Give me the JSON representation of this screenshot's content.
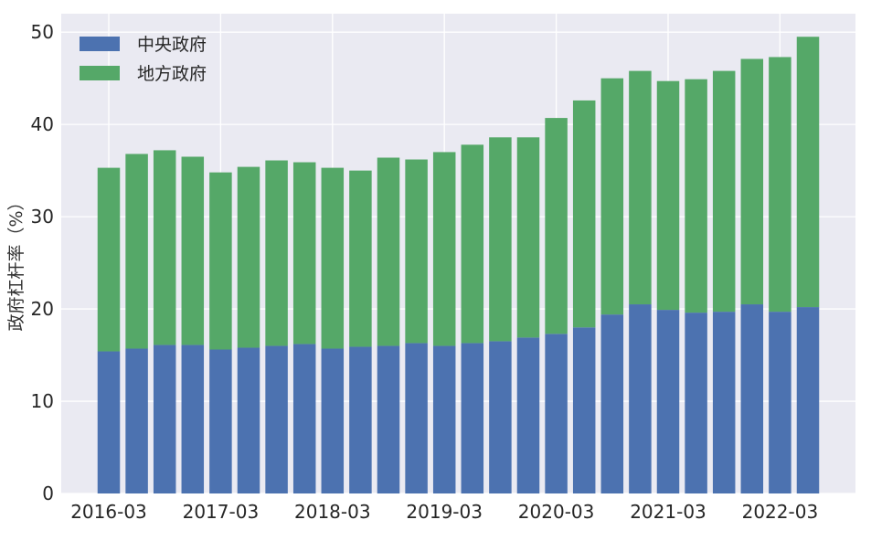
{
  "chart_data": {
    "type": "bar",
    "stacked": true,
    "title": "",
    "xlabel": "",
    "ylabel": "政府杠杆率（%）",
    "ylim": [
      0,
      52
    ],
    "yticks": [
      0,
      10,
      20,
      30,
      40,
      50
    ],
    "grid": true,
    "legend_position": "top-left",
    "x_tick_labels": [
      "2016-03",
      "2017-03",
      "2018-03",
      "2019-03",
      "2020-03",
      "2021-03",
      "2022-03"
    ],
    "x_tick_category_indices": [
      0,
      4,
      8,
      12,
      16,
      20,
      24
    ],
    "categories": [
      "2016-03",
      "2016-06",
      "2016-09",
      "2016-12",
      "2017-03",
      "2017-06",
      "2017-09",
      "2017-12",
      "2018-03",
      "2018-06",
      "2018-09",
      "2018-12",
      "2019-03",
      "2019-06",
      "2019-09",
      "2019-12",
      "2020-03",
      "2020-06",
      "2020-09",
      "2020-12",
      "2021-03",
      "2021-06",
      "2021-09",
      "2021-12",
      "2022-03",
      "2022-06"
    ],
    "series": [
      {
        "name": "中央政府",
        "color": "#4C72B0",
        "values": [
          15.4,
          15.7,
          16.1,
          16.1,
          15.6,
          15.8,
          16.0,
          16.2,
          15.7,
          15.9,
          16.0,
          16.3,
          16.0,
          16.3,
          16.5,
          16.9,
          17.3,
          18.0,
          19.4,
          20.5,
          19.9,
          19.6,
          19.7,
          20.5,
          19.7,
          20.2
        ]
      },
      {
        "name": "地方政府",
        "color": "#55A868",
        "values": [
          19.9,
          21.1,
          21.1,
          20.4,
          19.2,
          19.6,
          20.1,
          19.7,
          19.6,
          19.1,
          20.4,
          19.9,
          21.0,
          21.5,
          22.1,
          21.7,
          23.4,
          24.6,
          25.6,
          25.3,
          24.8,
          25.3,
          26.1,
          26.6,
          27.6,
          29.3
        ]
      }
    ]
  }
}
